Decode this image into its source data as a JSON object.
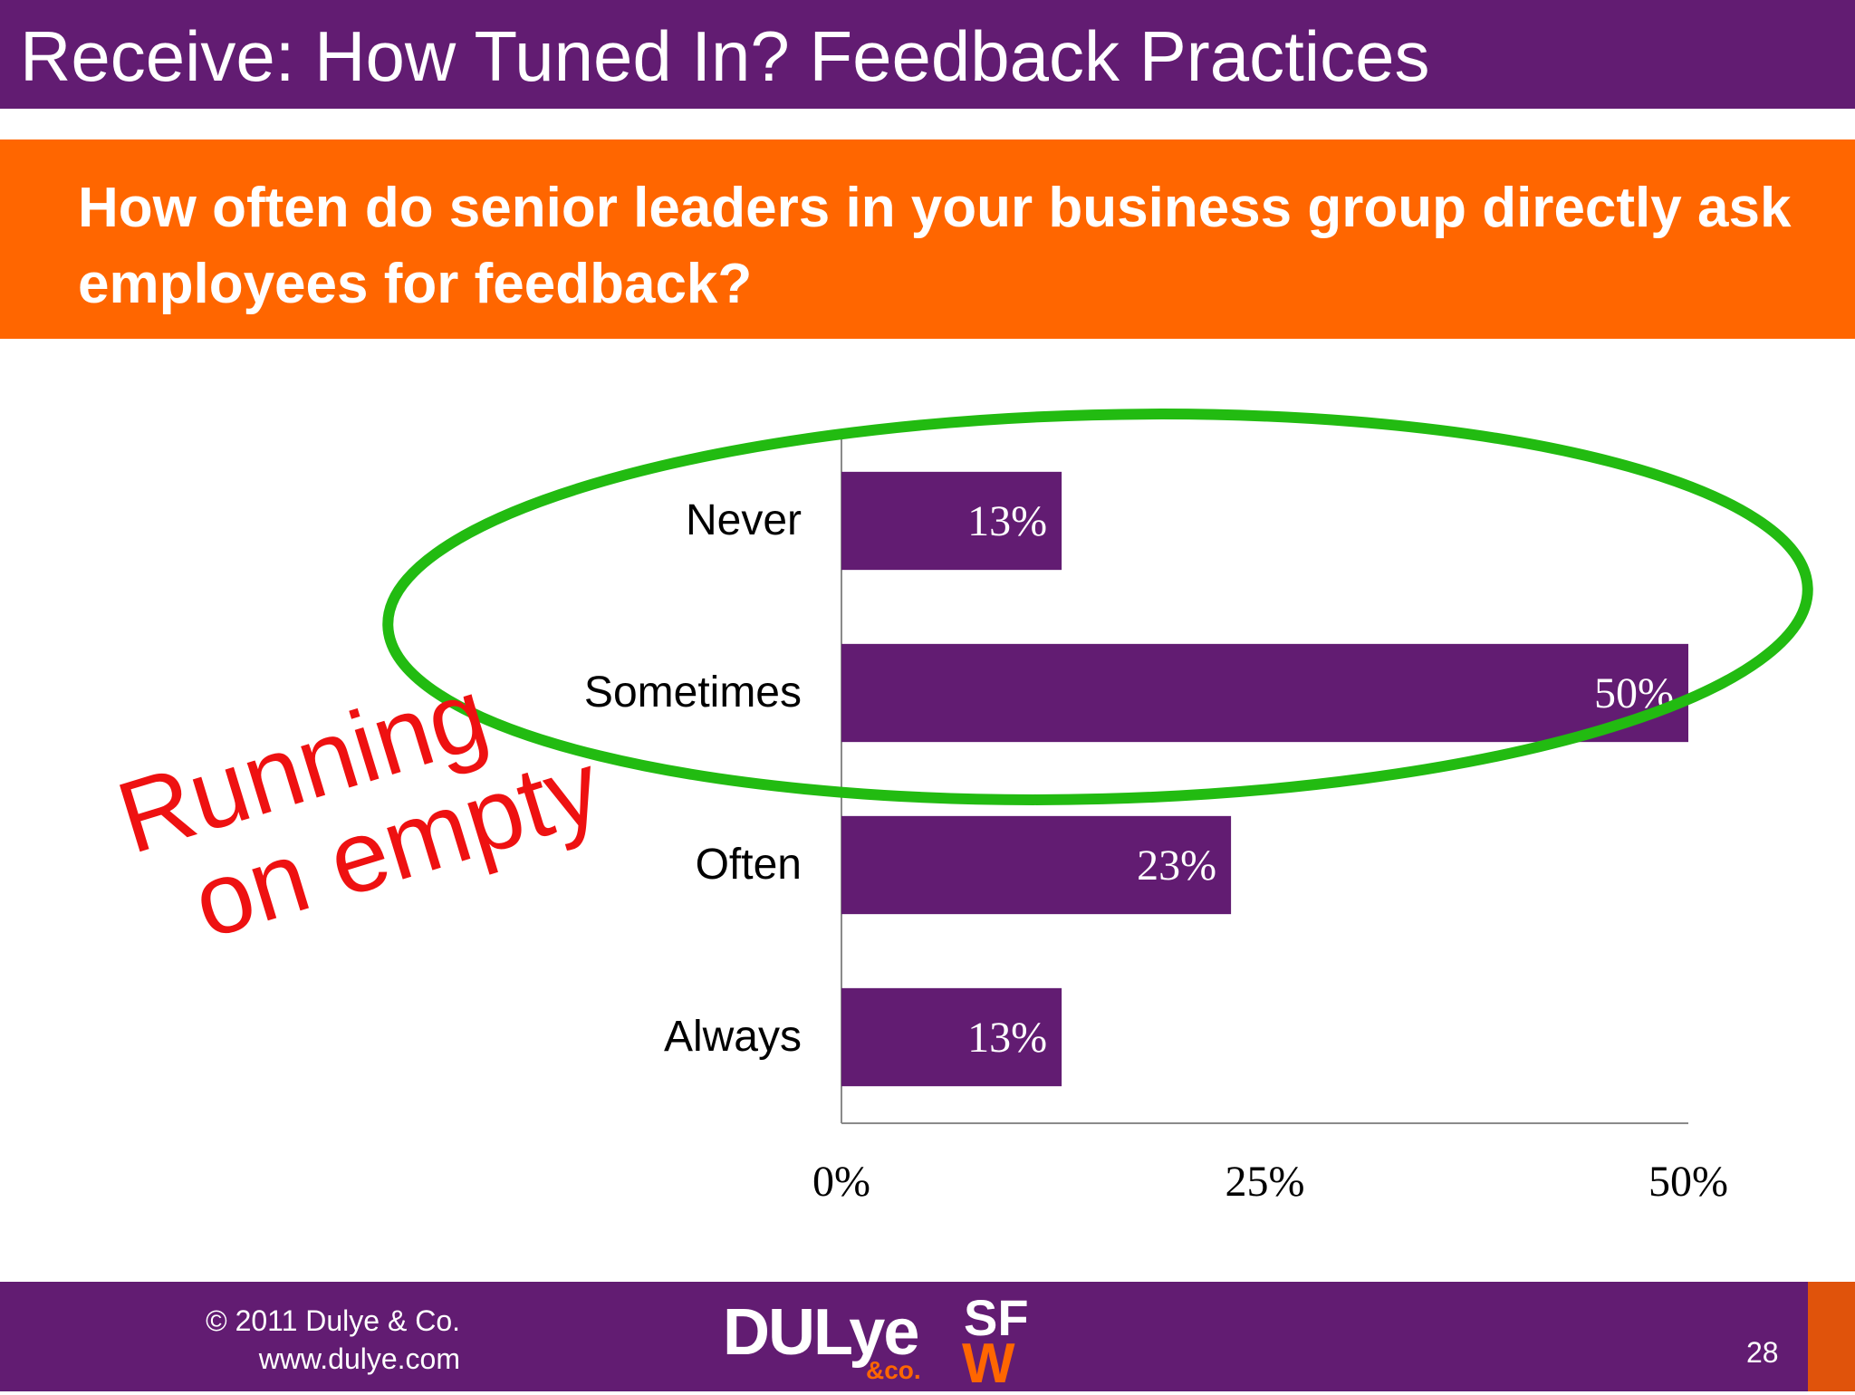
{
  "header": {
    "title": "Receive: How Tuned In? Feedback Practices"
  },
  "question": {
    "text": "How often do senior leaders in your business group directly ask employees for feedback?"
  },
  "annotation": {
    "line1": "Running",
    "line2": "on empty"
  },
  "colors": {
    "brand_purple": "#621c72",
    "brand_orange": "#ff6600",
    "highlight_green": "#22bb11",
    "annotation_red": "#ee1111"
  },
  "chart_data": {
    "type": "bar",
    "orientation": "horizontal",
    "categories": [
      "Never",
      "Sometimes",
      "Often",
      "Always"
    ],
    "values": [
      13,
      50,
      23,
      13
    ],
    "value_labels": [
      "13%",
      "50%",
      "23%",
      "13%"
    ],
    "xlim": [
      0,
      50
    ],
    "x_ticks": [
      "0%",
      "25%",
      "50%"
    ],
    "x_tick_values": [
      0,
      25,
      50
    ],
    "grid": false,
    "bar_color": "#621c72",
    "highlighted_categories": [
      "Never",
      "Sometimes"
    ]
  },
  "footer": {
    "copyright": "© 2011 Dulye & Co.",
    "website": "www.dulye.com",
    "logo_main": "DULye",
    "logo_sub": "&co.",
    "logo_sf": "SF",
    "logo_w": "W",
    "page_number": "28"
  }
}
